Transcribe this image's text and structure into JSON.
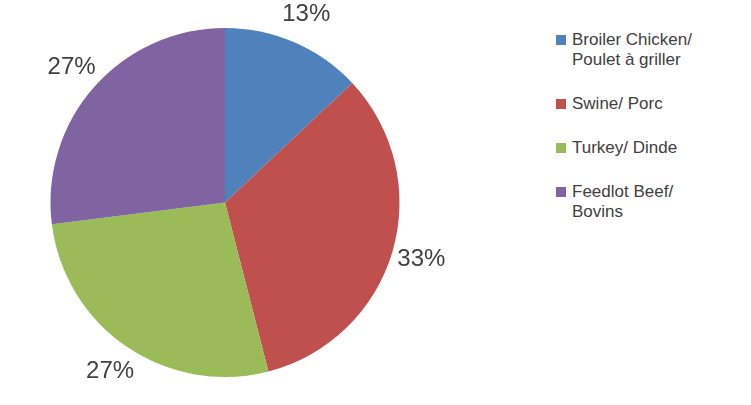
{
  "chart_data": {
    "type": "pie",
    "categories": [
      "Broiler Chicken/ Poulet à griller",
      "Swine/ Porc",
      "Turkey/ Dinde",
      "Feedlot Beef/ Bovins"
    ],
    "values": [
      13,
      33,
      27,
      27
    ],
    "value_labels": [
      "13%",
      "33%",
      "27%",
      "27%"
    ],
    "colors": [
      "#4f81bd",
      "#c0504d",
      "#9bbb59",
      "#8064a2"
    ],
    "data_labels": true,
    "legend": "right"
  }
}
